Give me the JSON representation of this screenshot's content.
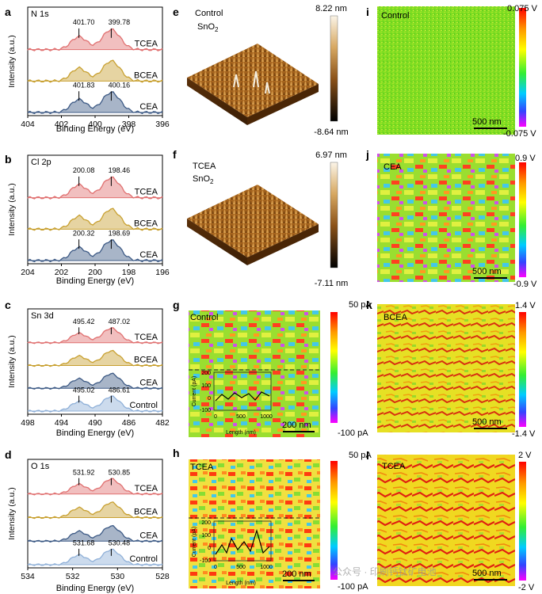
{
  "panel_letters": [
    "a",
    "b",
    "c",
    "d",
    "e",
    "f",
    "g",
    "h",
    "i",
    "j",
    "k",
    "l"
  ],
  "xps": {
    "y_label": "Intensity (a.u.)",
    "x_label": "Binding Energy (eV)",
    "panels": [
      {
        "id": "a",
        "element": "N 1s",
        "ticks": [
          "404",
          "402",
          "400",
          "398",
          "396"
        ],
        "series": [
          {
            "name": "TCEA",
            "color": "#e07070",
            "peaks": [
              "401.70",
              "399.78"
            ]
          },
          {
            "name": "BCEA",
            "color": "#c8a030",
            "peaks": []
          },
          {
            "name": "CEA",
            "color": "#3d5a85",
            "peaks": [
              "401.83",
              "400.16"
            ]
          }
        ]
      },
      {
        "id": "b",
        "element": "Cl 2p",
        "ticks": [
          "204",
          "202",
          "200",
          "198",
          "196"
        ],
        "series": [
          {
            "name": "TCEA",
            "color": "#e07070",
            "peaks": [
              "200.08",
              "198.46"
            ]
          },
          {
            "name": "BCEA",
            "color": "#c8a030",
            "peaks": []
          },
          {
            "name": "CEA",
            "color": "#3d5a85",
            "peaks": [
              "200.32",
              "198.69"
            ]
          }
        ]
      },
      {
        "id": "c",
        "element": "Sn 3d",
        "ticks": [
          "498",
          "494",
          "490",
          "486",
          "482"
        ],
        "series": [
          {
            "name": "TCEA",
            "color": "#e07070",
            "peaks": [
              "495.42",
              "487.02"
            ]
          },
          {
            "name": "BCEA",
            "color": "#c8a030",
            "peaks": []
          },
          {
            "name": "CEA",
            "color": "#3d5a85",
            "peaks": []
          },
          {
            "name": "Control",
            "color": "#8fb0d8",
            "peaks": [
              "495.02",
              "486.61"
            ]
          }
        ]
      },
      {
        "id": "d",
        "element": "O 1s",
        "ticks": [
          "534",
          "532",
          "530",
          "528"
        ],
        "series": [
          {
            "name": "TCEA",
            "color": "#e07070",
            "peaks": [
              "531.92",
              "530.85"
            ]
          },
          {
            "name": "BCEA",
            "color": "#c8a030",
            "peaks": []
          },
          {
            "name": "CEA",
            "color": "#3d5a85",
            "peaks": []
          },
          {
            "name": "Control",
            "color": "#8fb0d8",
            "peaks": [
              "531.68",
              "530.48"
            ]
          }
        ]
      }
    ]
  },
  "afm": [
    {
      "id": "e",
      "title": "Control",
      "subtitle": "SnO",
      "subscript": "2",
      "max": "8.22 nm",
      "min": "-8.64 nm"
    },
    {
      "id": "f",
      "title": "TCEA",
      "subtitle": "SnO",
      "subscript": "2",
      "max": "6.97 nm",
      "min": "-7.11 nm"
    }
  ],
  "current_maps": [
    {
      "id": "g",
      "label": "Control",
      "max": "50 pA",
      "min": "-100 pA",
      "scale": "200 nm",
      "inset": {
        "y_label": "Current (pA)",
        "x_label": "Length (nm)",
        "y_ticks": [
          "200",
          "100",
          "0",
          "-100"
        ],
        "x_ticks": [
          "0",
          "500",
          "1000"
        ]
      }
    },
    {
      "id": "h",
      "label": "TCEA",
      "max": "50 pA",
      "min": "-100 pA",
      "scale": "200 nm",
      "inset": {
        "y_label": "Current (pA)",
        "x_label": "Length (nm)",
        "y_ticks": [
          "200",
          "100",
          "0",
          "-100"
        ],
        "x_ticks": [
          "0",
          "500",
          "1000"
        ]
      }
    }
  ],
  "potential_maps": [
    {
      "id": "i",
      "label": "Control",
      "max": "0.075 V",
      "min": "-0.075 V",
      "scale": "500 nm"
    },
    {
      "id": "j",
      "label": "CEA",
      "max": "0.9 V",
      "min": "-0.9 V",
      "scale": "500 nm"
    },
    {
      "id": "k",
      "label": "BCEA",
      "max": "1.4 V",
      "min": "-1.4 V",
      "scale": "500 nm"
    },
    {
      "id": "l",
      "label": "TCEA",
      "max": "2 V",
      "min": "-2 V",
      "scale": "500 nm"
    }
  ],
  "watermark": "公众号 · 印刷钙钛矿电池"
}
